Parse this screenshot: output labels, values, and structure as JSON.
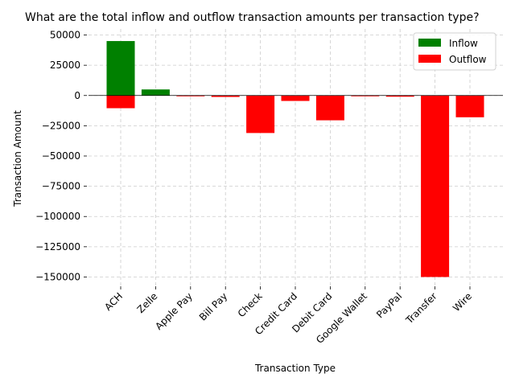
{
  "chart_data": {
    "type": "bar",
    "title": "What are the total inflow and outflow transaction amounts per transaction type?",
    "xlabel": "Transaction Type",
    "ylabel": "Transaction Amount",
    "categories": [
      "ACH",
      "Zelle",
      "Apple Pay",
      "Bill Pay",
      "Check",
      "Credit Card",
      "Debit Card",
      "Google Wallet",
      "PayPal",
      "Transfer",
      "Wire"
    ],
    "series": [
      {
        "name": "Inflow",
        "color": "#008000",
        "values": [
          45000,
          5000,
          0,
          0,
          0,
          0,
          0,
          0,
          0,
          0,
          0
        ]
      },
      {
        "name": "Outflow",
        "color": "#ff0000",
        "values": [
          -10500,
          0,
          -300,
          -1200,
          -31000,
          -4500,
          -20500,
          -200,
          -1000,
          -150000,
          -18000
        ]
      }
    ],
    "ylim": [
      -157000,
      55000
    ],
    "yticks": [
      50000,
      25000,
      0,
      -25000,
      -50000,
      -75000,
      -100000,
      -125000,
      -150000
    ],
    "ytick_labels": [
      "50000",
      "25000",
      "0",
      "−25000",
      "−50000",
      "−75000",
      "−100000",
      "−125000",
      "−150000"
    ],
    "grid": true,
    "legend_position": "top-right"
  }
}
